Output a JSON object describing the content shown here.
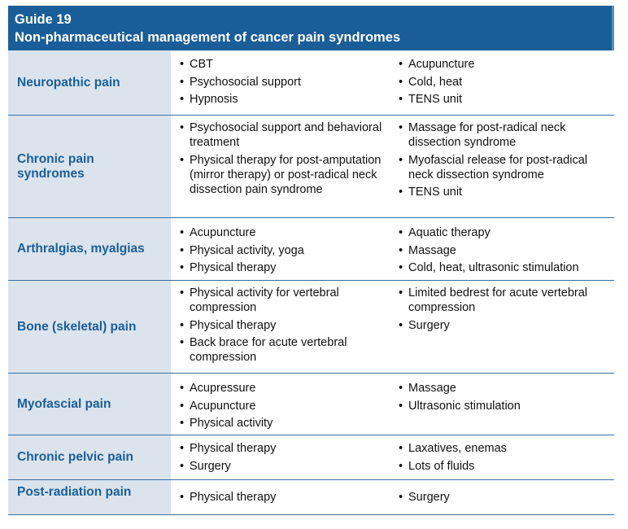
{
  "guide": {
    "number": "Guide 19",
    "title": "Non-pharmaceutical management of cancer pain syndromes"
  },
  "rows": [
    {
      "label": "Neuropathic pain",
      "left": [
        "CBT",
        "Psychosocial support",
        "Hypnosis"
      ],
      "right": [
        "Acupuncture",
        "Cold, heat",
        "TENS unit"
      ]
    },
    {
      "label": "Chronic pain syndromes",
      "left": [
        "Psychosocial support and behavioral treatment",
        "Physical therapy for post-amputation (mirror therapy) or post-radical neck dissection pain syndrome"
      ],
      "right": [
        "Massage for post-radical neck dissection syndrome",
        "Myofascial release for post-radical neck dissection syndrome",
        "TENS unit"
      ]
    },
    {
      "label": "Arthralgias, myalgias",
      "left": [
        "Acupuncture",
        "Physical activity, yoga",
        "Physical therapy"
      ],
      "right": [
        "Aquatic therapy",
        "Massage",
        "Cold, heat, ultrasonic stimulation"
      ]
    },
    {
      "label": "Bone (skeletal) pain",
      "left": [
        "Physical activity for vertebral compression",
        "Physical therapy",
        "Back brace for acute vertebral compression"
      ],
      "right": [
        "Limited bedrest for acute vertebral compression",
        "Surgery"
      ]
    },
    {
      "label": "Myofascial pain",
      "left": [
        "Acupressure",
        "Acupuncture",
        "Physical activity"
      ],
      "right": [
        "Massage",
        "Ultrasonic stimulation"
      ]
    },
    {
      "label": "Chronic pelvic pain",
      "left": [
        "Physical therapy",
        "Surgery"
      ],
      "right": [
        "Laxatives, enemas",
        "Lots of fluids"
      ]
    },
    {
      "label": "Post-radiation pain",
      "left": [
        "Physical therapy"
      ],
      "right": [
        "Surgery"
      ]
    }
  ]
}
